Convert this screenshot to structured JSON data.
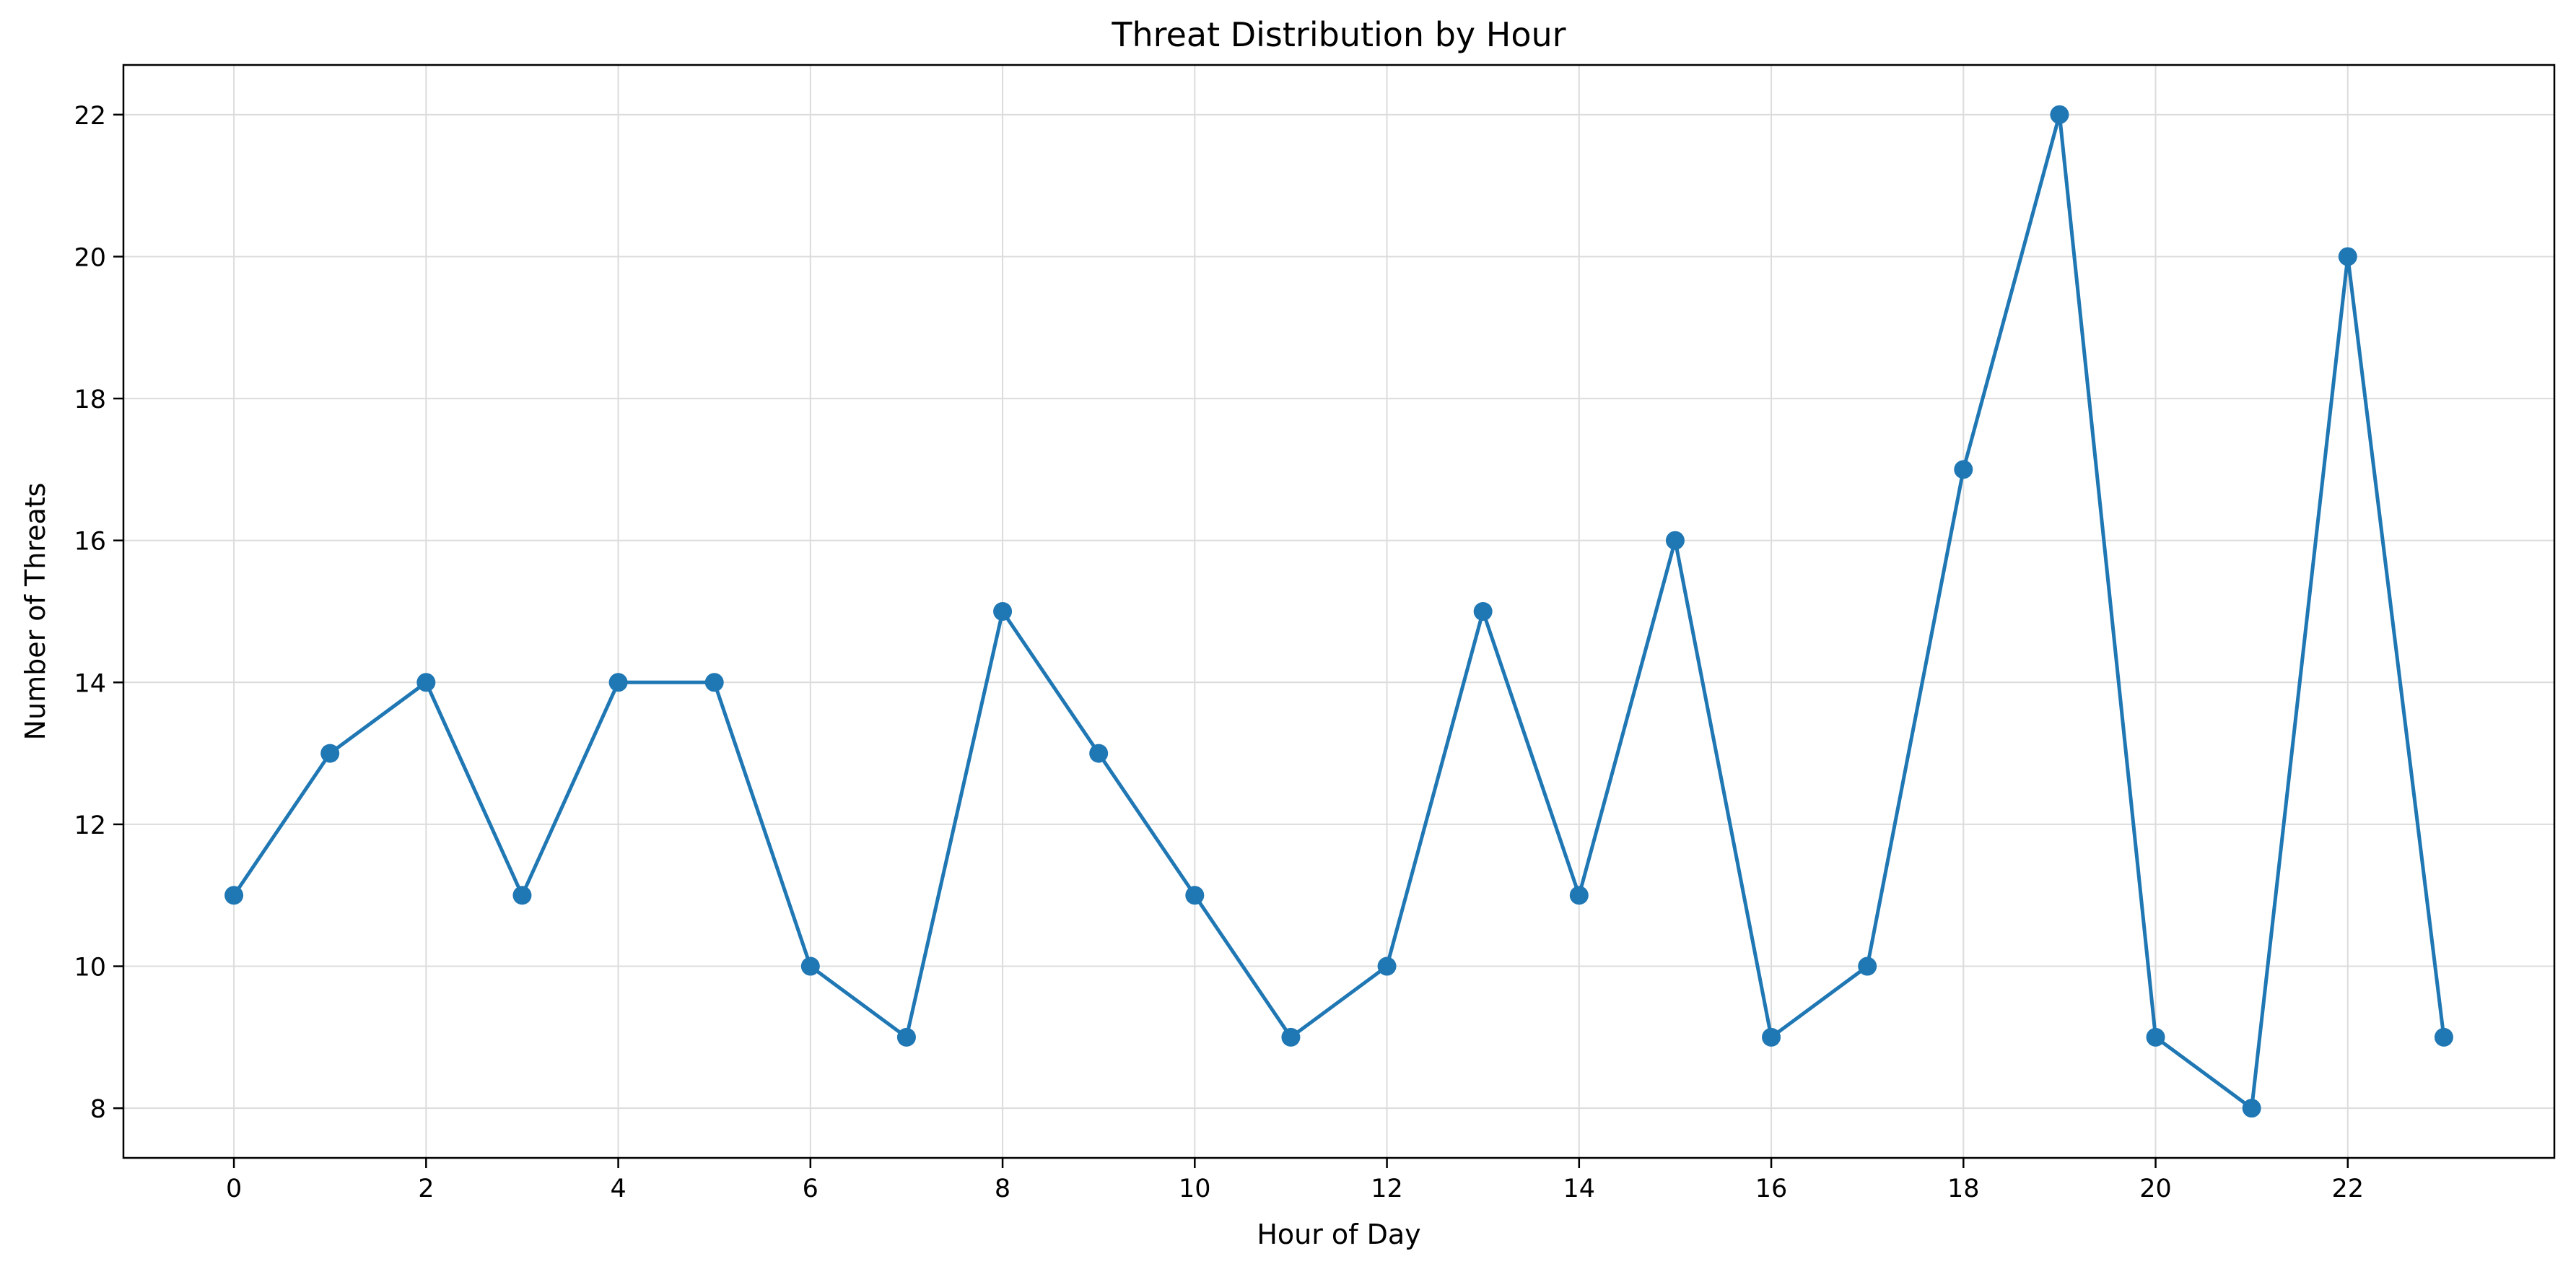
{
  "chart_data": {
    "type": "line",
    "title": "Threat Distribution by Hour",
    "xlabel": "Hour of Day",
    "ylabel": "Number of Threats",
    "x": [
      0,
      1,
      2,
      3,
      4,
      5,
      6,
      7,
      8,
      9,
      10,
      11,
      12,
      13,
      14,
      15,
      16,
      17,
      18,
      19,
      20,
      21,
      22,
      23
    ],
    "series": [
      {
        "values": [
          11,
          13,
          14,
          11,
          14,
          14,
          10,
          9,
          15,
          13,
          11,
          9,
          10,
          15,
          11,
          16,
          9,
          10,
          17,
          22,
          9,
          8,
          20,
          9
        ],
        "color": "#1f77b4"
      }
    ],
    "xlim": [
      -1.15,
      24.15
    ],
    "ylim": [
      7.3,
      22.7
    ],
    "xticks": [
      0,
      2,
      4,
      6,
      8,
      10,
      12,
      14,
      16,
      18,
      20,
      22
    ],
    "yticks": [
      8,
      10,
      12,
      14,
      16,
      18,
      20,
      22
    ],
    "grid": true,
    "marker": "circle"
  }
}
